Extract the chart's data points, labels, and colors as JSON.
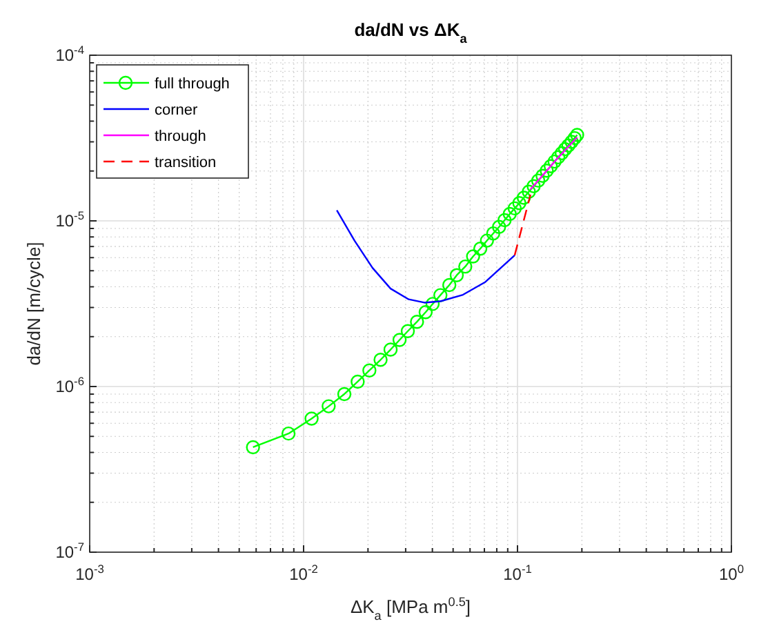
{
  "chart_data": {
    "type": "line",
    "title": "da/dN vs ΔK$_{a}$",
    "xlabel": "ΔK$_{a}$ [MPa m$^{0.5}$]",
    "ylabel": "da/dN [m/cycle]",
    "log": "xy",
    "grid": true,
    "legend": "top left",
    "xlim": [
      0.001,
      1
    ],
    "ylim": [
      1e-07,
      0.0001
    ],
    "xticks": [
      {
        "value": 0.001,
        "label": "10$^{-3}$"
      },
      {
        "value": 0.01,
        "label": "10$^{-2}$"
      },
      {
        "value": 0.1,
        "label": "10$^{-1}$"
      },
      {
        "value": 1,
        "label": "10$^{0}$"
      }
    ],
    "yticks": [
      {
        "value": 1e-07,
        "label": "10$^{-7}$"
      },
      {
        "value": 1e-06,
        "label": "10$^{-6}$"
      },
      {
        "value": 1e-05,
        "label": "10$^{-5}$"
      },
      {
        "value": 0.0001,
        "label": "10$^{-4}$"
      }
    ],
    "series": [
      {
        "name": "full through",
        "color": "#00ff00",
        "marker": "circle",
        "x": [
          0.0058,
          0.0085,
          0.0109,
          0.0131,
          0.0155,
          0.0179,
          0.0203,
          0.0229,
          0.0255,
          0.0281,
          0.0307,
          0.0339,
          0.0372,
          0.0401,
          0.0436,
          0.048,
          0.052,
          0.057,
          0.062,
          0.067,
          0.072,
          0.077,
          0.082,
          0.087,
          0.092,
          0.097,
          0.102,
          0.107,
          0.113,
          0.119,
          0.125,
          0.131,
          0.137,
          0.143,
          0.149,
          0.155,
          0.161,
          0.167,
          0.173,
          0.179,
          0.185,
          0.19
        ],
        "values": [
          4.3e-07,
          5.2e-07,
          6.4e-07,
          7.6e-07,
          9e-07,
          1.07e-06,
          1.25e-06,
          1.45e-06,
          1.67e-06,
          1.91e-06,
          2.16e-06,
          2.46e-06,
          2.81e-06,
          3.15e-06,
          3.56e-06,
          4.1e-06,
          4.7e-06,
          5.3e-06,
          6.1e-06,
          6.8e-06,
          7.6e-06,
          8.4e-06,
          9.2e-06,
          1.01e-05,
          1.1e-05,
          1.19e-05,
          1.28e-05,
          1.38e-05,
          1.5e-05,
          1.62e-05,
          1.75e-05,
          1.87e-05,
          2.01e-05,
          2.14e-05,
          2.28e-05,
          2.42e-05,
          2.56e-05,
          2.71e-05,
          2.85e-05,
          3e-05,
          3.16e-05,
          3.3e-05
        ]
      },
      {
        "name": "corner",
        "color": "#0000ff",
        "marker": "none",
        "x": [
          0.0143,
          0.0173,
          0.021,
          0.0255,
          0.031,
          0.0367,
          0.0436,
          0.0556,
          0.0708,
          0.097
        ],
        "values": [
          1.16e-05,
          7.6e-06,
          5.2e-06,
          3.9e-06,
          3.36e-06,
          3.21e-06,
          3.27e-06,
          3.58e-06,
          4.28e-06,
          6.2e-06
        ]
      },
      {
        "name": "through",
        "color": "#ff00ff",
        "marker": "none",
        "x": [
          0.115,
          0.15,
          0.19
        ],
        "values": [
          1.55e-05,
          2.3e-05,
          3.2e-05
        ]
      },
      {
        "name": "transition",
        "color": "#ff0000",
        "marker": "none",
        "line_style": "dashed",
        "x": [
          0.097,
          0.115
        ],
        "values": [
          6.2e-06,
          1.44e-05
        ]
      }
    ]
  }
}
